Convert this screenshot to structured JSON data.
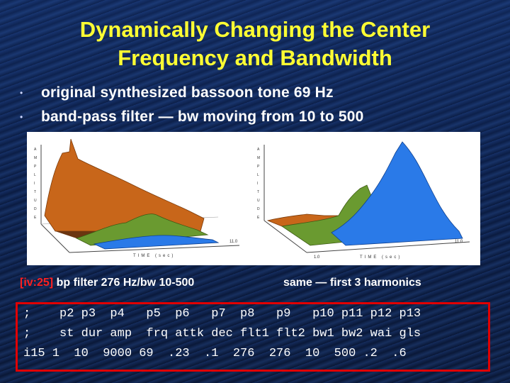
{
  "title": {
    "line1": "Dynamically Changing the Center",
    "line2": "Frequency and Bandwidth"
  },
  "bullets": [
    "original synthesized bassoon tone 69 Hz",
    "band-pass filter — bw moving from 10 to 500"
  ],
  "bullet_glyph": "•",
  "plot_left": {
    "y_axis_letters": "AMPLITUDE",
    "x_axis_label": "TIME (sec)",
    "end_label": "11.0"
  },
  "plot_right": {
    "y_axis_letters": "AMPLITUDE",
    "x_axis_label": "TIME (sec)",
    "start_label": "1.0",
    "end_label": "11.0"
  },
  "captions": {
    "left_tag": "[iv:25]",
    "left_text": " bp filter 276 Hz/bw 10-500",
    "right_text": "same — first 3 harmonics"
  },
  "code": {
    "line1": ";    p2 p3  p4   p5  p6   p7  p8   p9   p10 p11 p12 p13",
    "line2": ";    st dur amp  frq attk dec flt1 flt2 bw1 bw2 wai gls",
    "line3": "i15 1  10  9000 69  .23  .1  276  276  10  500 .2  .6"
  },
  "colors": {
    "title": "#ffff33",
    "caption_tag": "#ff2020",
    "code_border": "#e00000",
    "surface_orange": "#c8661a",
    "surface_green": "#6a9a30",
    "surface_blue": "#2a7ae8"
  }
}
